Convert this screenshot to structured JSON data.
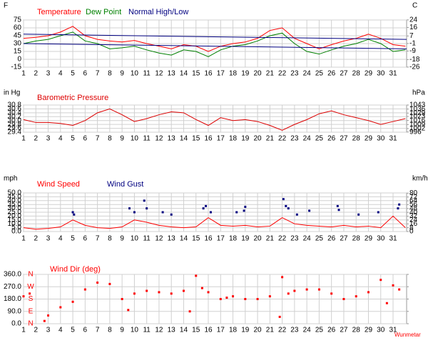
{
  "chart_data": [
    {
      "type": "line",
      "ylabel": "F",
      "y2label": "C",
      "x": [
        1,
        2,
        3,
        4,
        5,
        6,
        7,
        8,
        9,
        10,
        11,
        12,
        13,
        14,
        15,
        16,
        17,
        18,
        19,
        20,
        21,
        22,
        23,
        24,
        25,
        26,
        27,
        28,
        29,
        30,
        31,
        32
      ],
      "xlim": [
        1,
        32.1
      ],
      "xticks": [
        1,
        2,
        3,
        4,
        5,
        6,
        7,
        8,
        9,
        10,
        11,
        12,
        13,
        14,
        15,
        16,
        17,
        18,
        19,
        20,
        21,
        22,
        23,
        24,
        25,
        26,
        27,
        28,
        29,
        30,
        31
      ],
      "ylim": [
        -15,
        75
      ],
      "yticks": [
        75,
        60,
        45,
        30,
        15,
        0,
        -15
      ],
      "y2lim": [
        -26.1,
        23.9
      ],
      "y2ticks": [
        24,
        16,
        7,
        -1,
        -9,
        -18,
        -26
      ],
      "grid": true,
      "series": [
        {
          "name": "Temperature",
          "color": "#ff0000",
          "values": [
            40,
            42,
            45,
            52,
            63,
            45,
            38,
            35,
            33,
            36,
            30,
            25,
            20,
            28,
            25,
            15,
            25,
            30,
            33,
            40,
            55,
            60,
            40,
            30,
            20,
            28,
            35,
            40,
            48,
            40,
            28,
            25
          ]
        },
        {
          "name": "Dew Point",
          "color": "#008000",
          "values": [
            30,
            35,
            38,
            45,
            52,
            35,
            30,
            20,
            22,
            25,
            18,
            12,
            8,
            18,
            15,
            5,
            18,
            25,
            28,
            35,
            45,
            50,
            30,
            15,
            10,
            18,
            25,
            30,
            38,
            30,
            15,
            18
          ]
        },
        {
          "name": "Normal High/Low",
          "color": "#000080",
          "x": [
            1,
            32.1
          ],
          "values": [
            48,
            38
          ],
          "low": [
            30,
            20
          ]
        }
      ]
    },
    {
      "type": "line",
      "title": "Barometric Pressure",
      "ylabel": "in Hg",
      "y2label": "hPa",
      "color": "#dd0000",
      "x": [
        1,
        2,
        3,
        4,
        5,
        6,
        7,
        8,
        9,
        10,
        11,
        12,
        13,
        14,
        15,
        16,
        17,
        18,
        19,
        20,
        21,
        22,
        23,
        24,
        25,
        26,
        27,
        28,
        29,
        30,
        31,
        32
      ],
      "xlim": [
        1,
        32.1
      ],
      "xticks": [
        1,
        2,
        3,
        4,
        5,
        6,
        7,
        8,
        9,
        10,
        11,
        12,
        13,
        14,
        15,
        16,
        17,
        18,
        19,
        20,
        21,
        22,
        23,
        24,
        25,
        26,
        27,
        28,
        29,
        30,
        31
      ],
      "ylim": [
        29.4,
        30.8
      ],
      "yticks": [
        30.8,
        30.6,
        30.4,
        30.2,
        {
          "value": 30,
          "label": "30.0"
        },
        29.8,
        29.6,
        29.4
      ],
      "y2lim": [
        995.6,
        1043.0
      ],
      "y2ticks": [
        1043,
        1036,
        1029,
        1023,
        1016,
        1009,
        1002,
        996
      ],
      "grid": true,
      "values": [
        30.05,
        29.9,
        29.9,
        29.85,
        29.75,
        30.0,
        30.4,
        30.6,
        30.3,
        29.95,
        30.1,
        30.3,
        30.45,
        30.4,
        30.05,
        29.75,
        30.15,
        30.0,
        30.05,
        29.95,
        29.75,
        29.5,
        29.8,
        30.05,
        30.35,
        30.5,
        30.3,
        30.15,
        30.0,
        29.8,
        29.95,
        30.1
      ]
    },
    {
      "type": "line",
      "ylabel": "mph",
      "y2label": "km/h",
      "x": [
        1,
        2,
        3,
        4,
        5,
        6,
        7,
        8,
        9,
        10,
        11,
        12,
        13,
        14,
        15,
        16,
        17,
        18,
        19,
        20,
        21,
        22,
        23,
        24,
        25,
        26,
        27,
        28,
        29,
        30,
        31,
        32
      ],
      "xlim": [
        1,
        32.1
      ],
      "xticks": [
        1,
        2,
        3,
        4,
        5,
        6,
        7,
        8,
        9,
        10,
        11,
        12,
        13,
        14,
        15,
        16,
        17,
        18,
        19,
        20,
        21,
        22,
        23,
        24,
        25,
        26,
        27,
        28,
        29,
        30,
        31
      ],
      "ylim": [
        0,
        50
      ],
      "yticks": [
        {
          "value": 50,
          "label": "50.0"
        },
        {
          "value": 45,
          "label": "45.0"
        },
        {
          "value": 40,
          "label": "40.0"
        },
        {
          "value": 35,
          "label": "35.0"
        },
        {
          "value": 30,
          "label": "30.0"
        },
        {
          "value": 25,
          "label": "25.0"
        },
        {
          "value": 20,
          "label": "20.0"
        },
        {
          "value": 15,
          "label": "15.0"
        },
        {
          "value": 10,
          "label": "10.0"
        },
        {
          "value": 5,
          "label": "5.0"
        },
        {
          "value": 0,
          "label": "0.0"
        }
      ],
      "y2lim": [
        0,
        80.47
      ],
      "y2ticks": [
        80,
        72,
        64,
        56,
        48,
        40,
        32,
        24,
        16,
        8,
        0
      ],
      "grid": true,
      "series": [
        {
          "name": "Wind Speed",
          "color": "#ff0000",
          "values": [
            5,
            3,
            4,
            6,
            15,
            8,
            5,
            4,
            6,
            15,
            12,
            8,
            6,
            5,
            6,
            18,
            8,
            7,
            8,
            6,
            7,
            18,
            10,
            8,
            7,
            6,
            8,
            6,
            7,
            5,
            20,
            5
          ]
        },
        {
          "name": "Wind Gust",
          "color": "#000080",
          "type": "scatter",
          "x": [
            5,
            5.1,
            9.6,
            10,
            10.8,
            11,
            12.3,
            13,
            15.6,
            15.8,
            16.2,
            18.3,
            18.9,
            19,
            22.1,
            22.3,
            22.5,
            23.2,
            24.2,
            26.5,
            26.6,
            28.2,
            29.8,
            31.4,
            31.5
          ],
          "values": [
            25,
            22,
            30,
            25,
            40,
            30,
            25,
            22,
            30,
            33,
            25,
            25,
            27,
            32,
            42,
            33,
            30,
            22,
            27,
            33,
            28,
            22,
            25,
            30,
            35
          ]
        }
      ]
    },
    {
      "type": "scatter",
      "title": "Wind Dir (deg)",
      "color": "#ff0000",
      "footnote": "Wunmetar",
      "x": [
        1,
        1.5,
        2.7,
        3,
        4,
        5,
        6,
        7,
        8,
        9,
        9.5,
        10,
        11,
        12,
        13,
        14,
        14.5,
        15,
        15.5,
        16,
        17,
        17.5,
        18,
        19,
        20,
        21,
        21.8,
        22,
        22.5,
        23,
        24,
        25,
        26,
        27,
        28,
        29,
        30,
        30.5,
        31,
        31.5
      ],
      "values": [
        200,
        220,
        20,
        60,
        120,
        160,
        250,
        300,
        290,
        180,
        100,
        220,
        240,
        230,
        220,
        240,
        90,
        350,
        260,
        230,
        180,
        190,
        200,
        180,
        180,
        200,
        50,
        340,
        220,
        240,
        250,
        250,
        220,
        180,
        200,
        230,
        320,
        150,
        280,
        250
      ],
      "xlim": [
        1,
        32.1
      ],
      "xticks": [
        1,
        2,
        3,
        4,
        5,
        6,
        7,
        8,
        9,
        10,
        11,
        12,
        13,
        14,
        15,
        16,
        17,
        18,
        19,
        20,
        21,
        22,
        23,
        24,
        25,
        26,
        27,
        28,
        29,
        30,
        31
      ],
      "ylim": [
        0,
        360
      ],
      "yticks": [
        {
          "value": 360,
          "label": "360.0"
        },
        {
          "value": 270,
          "label": "270.0"
        },
        {
          "value": 180,
          "label": "180.0"
        },
        {
          "value": 90,
          "label": "90.0"
        },
        {
          "value": 0,
          "label": "0.0"
        }
      ],
      "y2lim": [
        0,
        360
      ],
      "y2ticks": [
        {
          "value": 360,
          "label": "N"
        },
        {
          "value": 270,
          "label": "W"
        },
        {
          "value": 180,
          "label": "S"
        },
        {
          "value": 90,
          "label": "E"
        },
        {
          "value": 0,
          "label": "N"
        }
      ],
      "grid": true
    }
  ]
}
